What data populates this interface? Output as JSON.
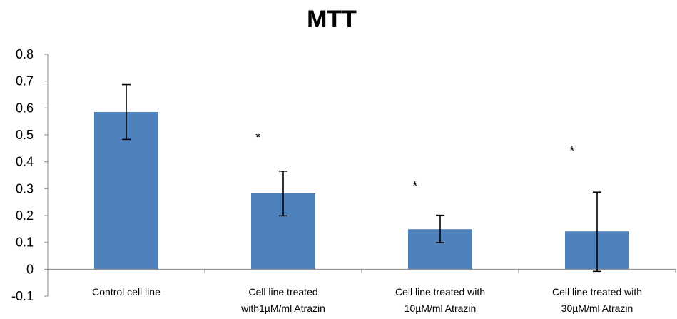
{
  "chart_data": {
    "type": "bar",
    "title": "MTT",
    "xlabel": "",
    "ylabel": "",
    "ylim": [
      -0.1,
      0.8
    ],
    "yticks": [
      "0.8",
      "0.7",
      "0.6",
      "0.5",
      "0.4",
      "0.3",
      "0.2",
      "0.1",
      "0",
      "-0.1"
    ],
    "yticks_values": [
      0.8,
      0.7,
      0.6,
      0.5,
      0.4,
      0.3,
      0.2,
      0.1,
      0,
      -0.1
    ],
    "categories": [
      [
        "Control cell line"
      ],
      [
        "Cell line treated",
        "with1µM/ml Atrazin"
      ],
      [
        "Cell line treated with",
        "10µM/ml Atrazin"
      ],
      [
        "Cell line treated with",
        "30µM/ml Atrazin"
      ]
    ],
    "values": [
      0.585,
      0.283,
      0.149,
      0.141
    ],
    "error_low": [
      0.483,
      0.199,
      0.099,
      -0.008
    ],
    "error_high": [
      0.687,
      0.365,
      0.201,
      0.287
    ],
    "significance": [
      "",
      "*",
      "*",
      "*"
    ],
    "significance_y": [
      null,
      0.5,
      0.32,
      0.45
    ],
    "grid": false,
    "legend": "none",
    "bar_color": "#4f81bd"
  }
}
